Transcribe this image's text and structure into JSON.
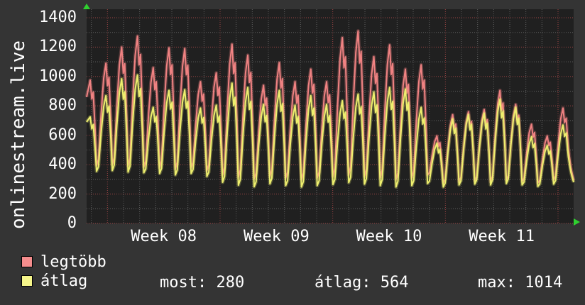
{
  "site_label": "onlinestream.live",
  "colors": {
    "background": "#343434",
    "canvas": "#202020",
    "grid_minor": "#5f5f5f",
    "grid_major": "#9b4444",
    "text": "#ffffff",
    "arrow_green": "#2fd12f",
    "series_max": "#f08282",
    "series_avg": "#eeef6e"
  },
  "legend": [
    {
      "label": "legtöbb",
      "color": "#f58d8d"
    },
    {
      "label": "átlag",
      "color": "#f5f58a"
    }
  ],
  "stats": [
    {
      "label": "most:",
      "value": "280"
    },
    {
      "label": "átlag:",
      "value": "564"
    },
    {
      "label": "max:",
      "value": "1014"
    }
  ],
  "chart_data": {
    "type": "line",
    "title": "onlinestream.live",
    "ylabel": "onlinestream.live",
    "xlabel": "",
    "ylim": [
      0,
      1458
    ],
    "y_ticks": [
      0,
      200,
      400,
      600,
      800,
      1000,
      1200,
      1400
    ],
    "y_minor_step": 100,
    "x_tick_labels": [
      "Week 08",
      "Week 09",
      "Week 10",
      "Week 11"
    ],
    "x_minor_unit": "day",
    "x_major_unit": "week",
    "grid": "dotted, minor gray per day / per 100, major red per week / per 200",
    "legend_position": "bottom-left",
    "series": [
      {
        "name": "legtöbb",
        "color": "#f08282",
        "start_value": 860,
        "end_value": 292,
        "daily_peaks": [
          975,
          1090,
          1200,
          1275,
          1060,
          1195,
          1190,
          965,
          1025,
          1220,
          1145,
          940,
          1095,
          965,
          1050,
          965,
          1265,
          1310,
          1135,
          1215,
          1050,
          1080,
          595,
          740,
          760,
          775,
          905,
          810,
          675,
          595,
          785
        ],
        "daily_troughs": [
          395,
          395,
          400,
          390,
          385,
          380,
          370,
          380,
          360,
          330,
          315,
          305,
          320,
          310,
          300,
          310,
          320,
          330,
          320,
          310,
          300,
          310,
          330,
          275,
          285,
          290,
          285,
          295,
          285,
          275,
          295
        ]
      },
      {
        "name": "átlag",
        "color": "#eeef6e",
        "start_value": 690,
        "end_value": 280,
        "daily_peaks": [
          725,
          870,
          985,
          1010,
          790,
          905,
          910,
          785,
          805,
          955,
          925,
          810,
          905,
          805,
          870,
          810,
          835,
          880,
          895,
          925,
          915,
          790,
          545,
          710,
          740,
          750,
          845,
          790,
          590,
          530,
          670
        ],
        "daily_troughs": [
          355,
          355,
          360,
          350,
          345,
          340,
          330,
          340,
          320,
          280,
          260,
          250,
          270,
          258,
          248,
          258,
          265,
          278,
          268,
          258,
          248,
          258,
          272,
          248,
          262,
          268,
          262,
          272,
          262,
          252,
          268
        ]
      }
    ],
    "stats_for_series": "átlag",
    "stats": {
      "most": 280,
      "atlag": 564,
      "max": 1014
    }
  }
}
